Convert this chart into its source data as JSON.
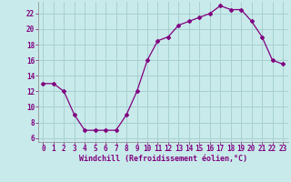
{
  "x": [
    0,
    1,
    2,
    3,
    4,
    5,
    6,
    7,
    8,
    9,
    10,
    11,
    12,
    13,
    14,
    15,
    16,
    17,
    18,
    19,
    20,
    21,
    22,
    23
  ],
  "y": [
    13,
    13,
    12,
    9,
    7,
    7,
    7,
    7,
    9,
    12,
    16,
    18.5,
    19,
    20.5,
    21,
    21.5,
    22,
    23,
    22.5,
    22.5,
    21,
    19,
    16,
    15.5
  ],
  "line_color": "#800080",
  "marker": "D",
  "marker_size": 2.0,
  "bg_color": "#c8eaea",
  "grid_color": "#a8d0d0",
  "xlabel": "Windchill (Refroidissement éolien,°C)",
  "xlabel_color": "#800080",
  "xlabel_fontsize": 6.0,
  "tick_color": "#800080",
  "tick_fontsize": 5.5,
  "ylim": [
    5.5,
    23.5
  ],
  "xlim": [
    -0.5,
    23.5
  ],
  "yticks": [
    6,
    8,
    10,
    12,
    14,
    16,
    18,
    20,
    22
  ],
  "xticks": [
    0,
    1,
    2,
    3,
    4,
    5,
    6,
    7,
    8,
    9,
    10,
    11,
    12,
    13,
    14,
    15,
    16,
    17,
    18,
    19,
    20,
    21,
    22,
    23
  ]
}
